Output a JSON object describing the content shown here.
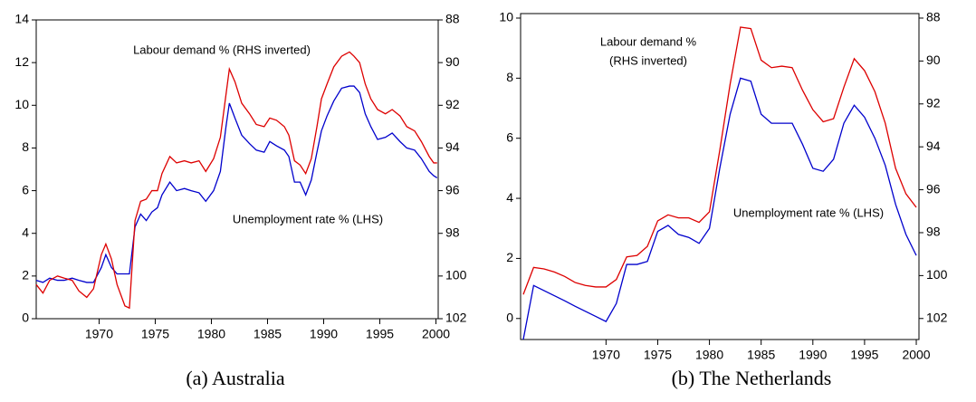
{
  "chart_data": [
    {
      "type": "line",
      "caption": "(a) Australia",
      "annotations": [
        "Labour demand % (RHS inverted)",
        "Unemployment rate % (LHS)"
      ],
      "x": [
        1964.4,
        1965.0,
        1965.6,
        1966.3,
        1966.9,
        1967.6,
        1968.2,
        1968.9,
        1969.5,
        1970.2,
        1970.6,
        1971.1,
        1971.6,
        1972.3,
        1972.7,
        1973.2,
        1973.7,
        1974.2,
        1974.7,
        1975.2,
        1975.6,
        1976.3,
        1976.9,
        1977.6,
        1978.2,
        1978.9,
        1979.5,
        1980.2,
        1980.8,
        1981.3,
        1981.6,
        1982.1,
        1982.7,
        1983.4,
        1984.0,
        1984.7,
        1985.2,
        1985.8,
        1986.5,
        1986.9,
        1987.4,
        1987.9,
        1988.4,
        1988.9,
        1989.4,
        1989.8,
        1990.3,
        1990.9,
        1991.6,
        1992.3,
        1992.7,
        1993.2,
        1993.7,
        1994.2,
        1994.8,
        1995.5,
        1996.1,
        1996.8,
        1997.4,
        1998.1,
        1998.7,
        1999.4,
        1999.8,
        2000.1
      ],
      "series": [
        {
          "color": "#0000cc",
          "values": [
            1.8,
            1.7,
            1.9,
            1.8,
            1.8,
            1.9,
            1.8,
            1.7,
            1.7,
            2.4,
            3.0,
            2.4,
            2.1,
            2.1,
            2.1,
            4.3,
            4.9,
            4.6,
            5.0,
            5.2,
            5.8,
            6.4,
            6.0,
            6.1,
            6.0,
            5.9,
            5.5,
            6.0,
            6.9,
            9.0,
            10.1,
            9.4,
            8.6,
            8.2,
            7.9,
            7.8,
            8.3,
            8.1,
            7.9,
            7.6,
            6.4,
            6.4,
            5.8,
            6.5,
            7.8,
            8.8,
            9.5,
            10.2,
            10.8,
            10.9,
            10.9,
            10.6,
            9.6,
            9.0,
            8.4,
            8.5,
            8.7,
            8.3,
            8.0,
            7.9,
            7.5,
            6.9,
            6.7,
            6.6
          ]
        },
        {
          "color": "#dd0000",
          "axis": "y2",
          "values": [
            100.4,
            100.8,
            100.2,
            100,
            100.1,
            100.2,
            100.7,
            101,
            100.6,
            99,
            98.5,
            99.2,
            100.4,
            101.4,
            101.5,
            97.4,
            96.5,
            96.4,
            96,
            96,
            95.2,
            94.4,
            94.7,
            94.6,
            94.7,
            94.6,
            95.1,
            94.5,
            93.5,
            91.5,
            90.3,
            90.9,
            91.9,
            92.4,
            92.9,
            93,
            92.6,
            92.7,
            93,
            93.4,
            94.6,
            94.8,
            95.2,
            94.5,
            93,
            91.7,
            91,
            90.2,
            89.7,
            89.5,
            89.7,
            90,
            91,
            91.7,
            92.2,
            92.4,
            92.2,
            92.5,
            93,
            93.2,
            93.7,
            94.4,
            94.7,
            94.7
          ]
        }
      ],
      "xlim": [
        1964.4,
        2000.2
      ],
      "xticks": [
        1970,
        1975,
        1980,
        1985,
        1990,
        1995,
        2000
      ],
      "ylim": [
        0,
        14
      ],
      "yticks": [
        0,
        2,
        4,
        6,
        8,
        10,
        12,
        14
      ],
      "y2lim": [
        102,
        88
      ],
      "y2ticks": [
        88,
        90,
        92,
        94,
        96,
        98,
        100,
        102
      ]
    },
    {
      "type": "line",
      "caption": "(b) The Netherlands",
      "annotations": [
        "Labour demand %",
        "(RHS inverted)",
        "Unemployment rate % (LHS)"
      ],
      "x": [
        1962,
        1963,
        1964,
        1965,
        1966,
        1967,
        1968,
        1969,
        1970,
        1971,
        1972,
        1973,
        1974,
        1975,
        1976,
        1977,
        1978,
        1979,
        1980,
        1981,
        1982,
        1983,
        1984,
        1985,
        1986,
        1987,
        1988,
        1989,
        1990,
        1991,
        1992,
        1993,
        1994,
        1995,
        1996,
        1997,
        1998,
        1999,
        2000
      ],
      "series": [
        {
          "color": "#0000cc",
          "values": [
            -0.7,
            1.1,
            0.93,
            0.76,
            0.59,
            0.41,
            0.24,
            0.07,
            -0.1,
            0.5,
            1.8,
            1.8,
            1.9,
            2.9,
            3.1,
            2.8,
            2.7,
            2.5,
            3.0,
            5.0,
            6.8,
            8.0,
            7.9,
            6.8,
            6.5,
            6.5,
            6.5,
            5.8,
            5.0,
            4.9,
            5.3,
            6.5,
            7.1,
            6.7,
            6.0,
            5.1,
            3.8,
            2.8,
            2.1
          ]
        },
        {
          "color": "#dd0000",
          "axis": "y2",
          "values": [
            100.88,
            99.62,
            99.69,
            99.83,
            100.04,
            100.32,
            100.46,
            100.53,
            100.53,
            100.18,
            99.13,
            99.06,
            98.64,
            97.45,
            97.17,
            97.31,
            97.31,
            97.52,
            97.03,
            94.16,
            91.08,
            88.42,
            88.49,
            89.96,
            90.31,
            90.24,
            90.31,
            91.36,
            92.27,
            92.83,
            92.69,
            91.22,
            89.89,
            90.45,
            91.43,
            92.9,
            95.0,
            96.19,
            96.82
          ]
        }
      ],
      "xlim": [
        1961.74,
        2000.26
      ],
      "xticks": [
        1970,
        1975,
        1980,
        1985,
        1990,
        1995,
        2000
      ],
      "ylim": [
        -0.7,
        10.15
      ],
      "yticks": [
        0,
        2,
        4,
        6,
        8,
        10
      ],
      "y2lim": [
        102.98,
        87.79
      ],
      "y2ticks": [
        88,
        90,
        92,
        94,
        96,
        98,
        100,
        102
      ]
    }
  ]
}
